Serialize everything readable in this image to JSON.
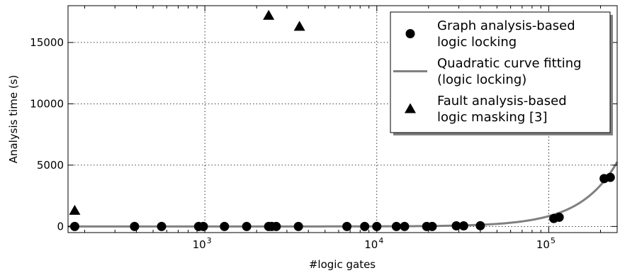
{
  "chart_data": {
    "type": "scatter",
    "xlabel": "#logic gates",
    "ylabel": "Analysis time (s)",
    "xscale": "log",
    "xlim": [
      160,
      250000
    ],
    "ylim": [
      -500,
      18000
    ],
    "grid": true,
    "legend_position": "top-right",
    "x_ticks": [
      {
        "value": 1000,
        "base": "10",
        "exp": "3"
      },
      {
        "value": 10000,
        "base": "10",
        "exp": "4"
      },
      {
        "value": 100000,
        "base": "10",
        "exp": "5"
      }
    ],
    "y_ticks": [
      {
        "value": 0,
        "label": "0"
      },
      {
        "value": 5000,
        "label": "5000"
      },
      {
        "value": 10000,
        "label": "10000"
      },
      {
        "value": 15000,
        "label": "15000"
      }
    ],
    "series": [
      {
        "name": "Graph analysis-based logic locking",
        "legend_lines": [
          "Graph analysis-based",
          "logic locking"
        ],
        "marker": "circle",
        "color": "#000000",
        "points": [
          [
            175,
            0
          ],
          [
            390,
            0
          ],
          [
            560,
            0
          ],
          [
            920,
            0
          ],
          [
            980,
            0
          ],
          [
            1300,
            0
          ],
          [
            1750,
            0
          ],
          [
            2350,
            0
          ],
          [
            2450,
            0
          ],
          [
            2600,
            0
          ],
          [
            3500,
            0
          ],
          [
            6700,
            0
          ],
          [
            8500,
            0
          ],
          [
            10000,
            0
          ],
          [
            13000,
            0
          ],
          [
            14500,
            0
          ],
          [
            19500,
            0
          ],
          [
            21000,
            0
          ],
          [
            29000,
            50
          ],
          [
            32000,
            50
          ],
          [
            40000,
            60
          ],
          [
            107000,
            650
          ],
          [
            115000,
            750
          ],
          [
            210000,
            3900
          ],
          [
            228000,
            4000
          ]
        ]
      },
      {
        "name": "Quadratic curve fitting (logic locking)",
        "legend_lines": [
          "Quadratic curve fitting",
          "(logic locking)"
        ],
        "type": "line",
        "color": "#808080",
        "coef": 8.4e-08
      },
      {
        "name": "Fault analysis-based logic masking [3]",
        "legend_lines": [
          "Fault analysis-based",
          "logic masking [3]"
        ],
        "marker": "triangle",
        "color": "#000000",
        "points": [
          [
            175,
            1300
          ],
          [
            2350,
            17200
          ],
          [
            3550,
            16300
          ]
        ]
      }
    ]
  }
}
